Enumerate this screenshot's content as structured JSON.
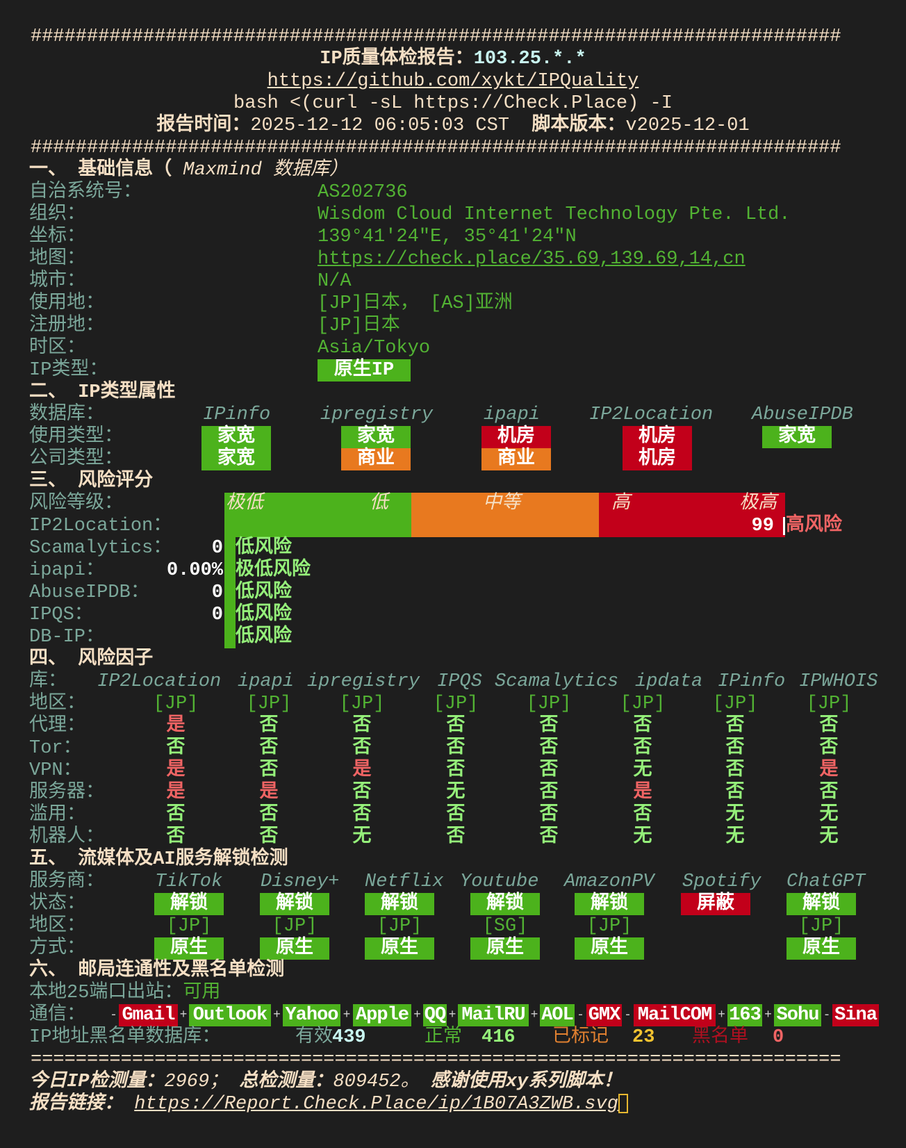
{
  "colors": {
    "background": "#1e1e1e",
    "header": "#f5dfc4",
    "label": "#7ba79a",
    "value": "#52b233",
    "badge_green": "#4cb21c",
    "badge_red": "#c2001a",
    "badge_orange": "#e8791f"
  },
  "header": {
    "hash_line": "########################################################################",
    "title_label": "IP质量体检报告：",
    "ip": "103.25.*.*",
    "github_url": "https://github.com/xykt/IPQuality",
    "command": "bash <(curl -sL https://Check.Place) -I",
    "time_label": "报告时间：",
    "time": "2025-12-12 06:05:03 CST",
    "version_label": "脚本版本：",
    "version": "v2025-12-01"
  },
  "basic": {
    "title": "一、 基础信息（ ",
    "title_db": "Maxmind 数据库）",
    "rows": [
      {
        "label": "自治系统号：",
        "value": "AS202736"
      },
      {
        "label": "组织：",
        "value": "Wisdom Cloud Internet Technology Pte. Ltd."
      },
      {
        "label": "坐标：",
        "value": "139°41′24″E, 35°41′24″N"
      },
      {
        "label": "地图：",
        "value": "https://check.place/35.69,139.69,14,cn",
        "link": true
      },
      {
        "label": "城市：",
        "value": "N/A"
      },
      {
        "label": "使用地：",
        "value": "[JP]日本， [AS]亚洲"
      },
      {
        "label": "注册地：",
        "value": "[JP]日本"
      },
      {
        "label": "时区：",
        "value": "Asia/Tokyo"
      }
    ],
    "ip_type_label": "IP类型：",
    "ip_type": "原生IP"
  },
  "iptype": {
    "title": "二、 IP类型属性",
    "db_label": "数据库：",
    "usage_label": "使用类型：",
    "company_label": "公司类型：",
    "columns": [
      {
        "db": "IPinfo",
        "usage": "家宽",
        "usage_color": "green",
        "company": "家宽",
        "company_color": "green"
      },
      {
        "db": "ipregistry",
        "usage": "家宽",
        "usage_color": "green",
        "company": "商业",
        "company_color": "orange"
      },
      {
        "db": "ipapi",
        "usage": "机房",
        "usage_color": "red",
        "company": "商业",
        "company_color": "orange"
      },
      {
        "db": "IP2Location",
        "usage": "机房",
        "usage_color": "red",
        "company": "机房",
        "company_color": "red"
      },
      {
        "db": "AbuseIPDB",
        "usage": "家宽",
        "usage_color": "green",
        "company": "",
        "company_color": ""
      }
    ]
  },
  "risk": {
    "title": "三、 风险评分",
    "level_label": "风险等级：",
    "scale": [
      "极低",
      "低",
      "中等",
      "高",
      "极高"
    ],
    "rows": [
      {
        "label": "IP2Location：",
        "score": "99",
        "level": "高风险",
        "score_value": 99,
        "color": "red"
      },
      {
        "label": "Scamalytics：",
        "score": "0",
        "level": "低风险",
        "score_value": 0,
        "color": "green"
      },
      {
        "label": "ipapi：",
        "score": "0.00%",
        "level": "极低风险",
        "score_value": 0,
        "color": "green"
      },
      {
        "label": "AbuseIPDB：",
        "score": "0",
        "level": "低风险",
        "score_value": 0,
        "color": "green"
      },
      {
        "label": "IPQS：",
        "score": "0",
        "level": "低风险",
        "score_value": 0,
        "color": "green"
      },
      {
        "label": "DB-IP：",
        "score": "",
        "level": "低风险",
        "score_value": 0,
        "color": "green"
      }
    ]
  },
  "factors": {
    "title": "四、 风险因子",
    "db_label": "库：",
    "dbs": [
      "IP2Location",
      "ipapi",
      "ipregistry",
      "IPQS",
      "Scamalytics",
      "ipdata",
      "IPinfo",
      "IPWHOIS"
    ],
    "rows": [
      {
        "label": "地区：",
        "values": [
          "[JP]",
          "[JP]",
          "[JP]",
          "[JP]",
          "[JP]",
          "[JP]",
          "[JP]",
          "[JP]"
        ]
      },
      {
        "label": "代理：",
        "values": [
          "是",
          "否",
          "否",
          "否",
          "否",
          "否",
          "否",
          "否"
        ]
      },
      {
        "label": "Tor：",
        "values": [
          "否",
          "否",
          "否",
          "否",
          "否",
          "否",
          "否",
          "否"
        ]
      },
      {
        "label": "VPN：",
        "values": [
          "是",
          "否",
          "是",
          "否",
          "否",
          "无",
          "否",
          "是"
        ]
      },
      {
        "label": "服务器：",
        "values": [
          "是",
          "是",
          "否",
          "无",
          "否",
          "是",
          "否",
          "否"
        ]
      },
      {
        "label": "滥用：",
        "values": [
          "否",
          "否",
          "否",
          "否",
          "否",
          "否",
          "无",
          "无"
        ]
      },
      {
        "label": "机器人：",
        "values": [
          "否",
          "否",
          "无",
          "否",
          "否",
          "无",
          "无",
          "无"
        ]
      }
    ]
  },
  "streaming": {
    "title": "五、 流媒体及AI服务解锁检测",
    "service_label": "服务商：",
    "status_label": "状态：",
    "region_label": "地区：",
    "method_label": "方式：",
    "services": [
      {
        "name": "TikTok",
        "status": "解锁",
        "status_color": "green",
        "region": "[JP]",
        "method": "原生"
      },
      {
        "name": "Disney+",
        "status": "解锁",
        "status_color": "green",
        "region": "[JP]",
        "method": "原生"
      },
      {
        "name": "Netflix",
        "status": "解锁",
        "status_color": "green",
        "region": "[JP]",
        "method": "原生"
      },
      {
        "name": "Youtube",
        "status": "解锁",
        "status_color": "green",
        "region": "[SG]",
        "method": "原生"
      },
      {
        "name": "AmazonPV",
        "status": "解锁",
        "status_color": "green",
        "region": "[JP]",
        "method": "原生"
      },
      {
        "name": "Spotify",
        "status": "屏蔽",
        "status_color": "red",
        "region": "",
        "method": ""
      },
      {
        "name": "ChatGPT",
        "status": "解锁",
        "status_color": "green",
        "region": "[JP]",
        "method": "原生"
      }
    ]
  },
  "mail": {
    "title": "六、 邮局连通性及黑名单检测",
    "port25_label": "本地25端口出站：",
    "port25_value": "可用",
    "comm_label": "通信：",
    "providers": [
      {
        "name": "Gmail",
        "color": "red",
        "sep": "-"
      },
      {
        "name": "Outlook",
        "color": "green",
        "sep": "+"
      },
      {
        "name": "Yahoo",
        "color": "green",
        "sep": "+"
      },
      {
        "name": "Apple",
        "color": "green",
        "sep": "+"
      },
      {
        "name": "QQ",
        "color": "green",
        "sep": "+"
      },
      {
        "name": "MailRU",
        "color": "green",
        "sep": "+"
      },
      {
        "name": "AOL",
        "color": "green",
        "sep": "+"
      },
      {
        "name": "GMX",
        "color": "red",
        "sep": "-"
      },
      {
        "name": "MailCOM",
        "color": "red",
        "sep": "-"
      },
      {
        "name": "163",
        "color": "green",
        "sep": "+"
      },
      {
        "name": "Sohu",
        "color": "green",
        "sep": "+"
      },
      {
        "name": "Sina",
        "color": "red",
        "sep": "-"
      }
    ],
    "blacklist_label": "IP地址黑名单数据库：",
    "valid_label": "有效",
    "valid": "439",
    "normal_label": "正常",
    "normal": "416",
    "marked_label": "已标记",
    "marked": "23",
    "black_label": "黑名单",
    "black": "0"
  },
  "footer": {
    "eq_line": "========================================================================",
    "today_label": "今日IP检测量：",
    "today": "2969；",
    "total_label": "总检测量：",
    "total": "809452。",
    "thanks": "感谢使用xy系列脚本！",
    "report_label": "报告链接：",
    "report_url": "https://Report.Check.Place/ip/1B07A3ZWB.svg"
  }
}
